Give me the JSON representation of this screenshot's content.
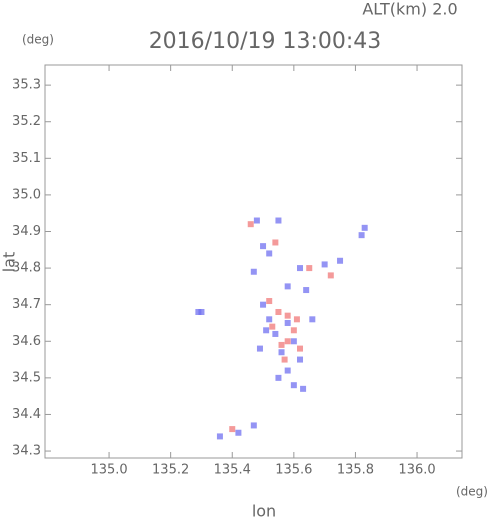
{
  "chart_data": {
    "type": "scatter",
    "annotation": "ALT(km)  2.0",
    "title": "2016/10/19 13:00:43",
    "y_unit": "(deg)",
    "x_unit": "(deg)",
    "xlabel": "lon",
    "ylabel": "lat",
    "xlim": [
      134.792,
      136.146
    ],
    "ylim": [
      34.281,
      35.355
    ],
    "xticks": [
      {
        "value": 135,
        "label": "135.0"
      },
      135.2,
      135.4,
      135.6,
      135.8,
      {
        "value": 136,
        "label": "136.0"
      }
    ],
    "yticks": [
      34.3,
      34.4,
      34.5,
      34.6,
      34.7,
      34.8,
      34.9,
      {
        "value": 35,
        "label": "35.0"
      },
      35.1,
      35.2,
      35.3
    ],
    "series": [
      {
        "color": "#7070f0",
        "x": [
          135.3,
          135.29,
          135.48,
          135.55,
          135.83,
          135.82,
          135.5,
          135.52,
          135.47,
          135.62,
          135.7,
          135.75,
          135.58,
          135.5,
          135.52,
          135.58,
          135.54,
          135.6,
          135.56,
          135.62,
          135.58,
          135.55,
          135.6,
          135.63,
          135.36,
          135.42,
          135.47,
          135.51,
          135.49,
          135.66,
          135.64
        ],
        "values": [
          34.68,
          34.68,
          34.93,
          34.93,
          34.91,
          34.89,
          34.86,
          34.84,
          34.79,
          34.8,
          34.81,
          34.82,
          34.75,
          34.7,
          34.66,
          34.65,
          34.62,
          34.6,
          34.57,
          34.55,
          34.52,
          34.5,
          34.48,
          34.47,
          34.34,
          34.35,
          34.37,
          34.63,
          34.58,
          34.66,
          34.74
        ]
      },
      {
        "color": "#f07878",
        "x": [
          135.46,
          135.54,
          135.52,
          135.55,
          135.58,
          135.6,
          135.56,
          135.53,
          135.65,
          135.72,
          135.62,
          135.57,
          135.4,
          135.58,
          135.61
        ],
        "values": [
          34.92,
          34.87,
          34.71,
          34.68,
          34.6,
          34.63,
          34.59,
          34.64,
          34.8,
          34.78,
          34.58,
          34.55,
          34.36,
          34.67,
          34.66
        ]
      }
    ]
  }
}
